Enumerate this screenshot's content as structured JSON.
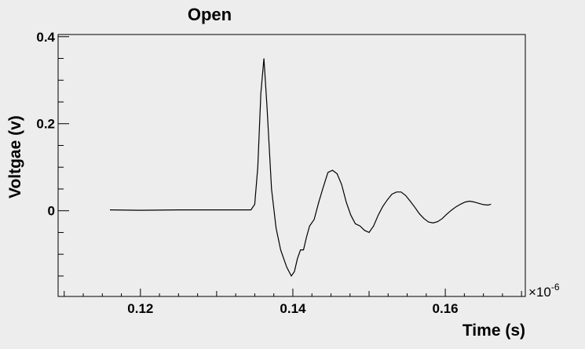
{
  "chart_data": {
    "type": "line",
    "title": "Open",
    "xlabel": "Time (s)",
    "ylabel": "Voltgae (v)",
    "x_multiplier": {
      "base": "×10",
      "exponent": "-6"
    },
    "xlim": [
      0.1092,
      0.1705
    ],
    "ylim": [
      -0.197,
      0.405
    ],
    "x_ticks": [
      "0.12",
      "0.14",
      "0.16"
    ],
    "y_ticks": [
      "0",
      "0.2",
      "0.4"
    ],
    "grid": false,
    "legend": "none",
    "line_color": "#000000",
    "series": [
      {
        "x": [
          0.116,
          0.12,
          0.125,
          0.13,
          0.1345,
          0.135,
          0.1354,
          0.1358,
          0.1362,
          0.1366,
          0.1372,
          0.1378,
          0.1384,
          0.1392,
          0.1398,
          0.1402,
          0.1406,
          0.141,
          0.1414,
          0.1418,
          0.1422,
          0.1428,
          0.1434,
          0.144,
          0.1446,
          0.1452,
          0.1458,
          0.1464,
          0.147,
          0.1476,
          0.1482,
          0.1488,
          0.1494,
          0.15,
          0.1506,
          0.1512,
          0.1518,
          0.1524,
          0.153,
          0.1536,
          0.1542,
          0.1548,
          0.1554,
          0.156,
          0.1566,
          0.1572,
          0.1578,
          0.1584,
          0.159,
          0.1596,
          0.1602,
          0.1608,
          0.1614,
          0.162,
          0.1626,
          0.1632,
          0.1638,
          0.1644,
          0.165,
          0.1656,
          0.166
        ],
        "y": [
          0.002,
          0.001,
          0.002,
          0.002,
          0.002,
          0.015,
          0.1,
          0.27,
          0.35,
          0.24,
          0.05,
          -0.04,
          -0.09,
          -0.13,
          -0.15,
          -0.14,
          -0.11,
          -0.09,
          -0.09,
          -0.06,
          -0.035,
          -0.02,
          0.02,
          0.055,
          0.088,
          0.093,
          0.085,
          0.06,
          0.02,
          -0.01,
          -0.03,
          -0.035,
          -0.045,
          -0.05,
          -0.035,
          -0.01,
          0.01,
          0.025,
          0.038,
          0.043,
          0.043,
          0.035,
          0.022,
          0.008,
          -0.007,
          -0.018,
          -0.026,
          -0.028,
          -0.025,
          -0.018,
          -0.008,
          0.001,
          0.009,
          0.015,
          0.02,
          0.022,
          0.02,
          0.017,
          0.014,
          0.013,
          0.015
        ]
      }
    ]
  }
}
